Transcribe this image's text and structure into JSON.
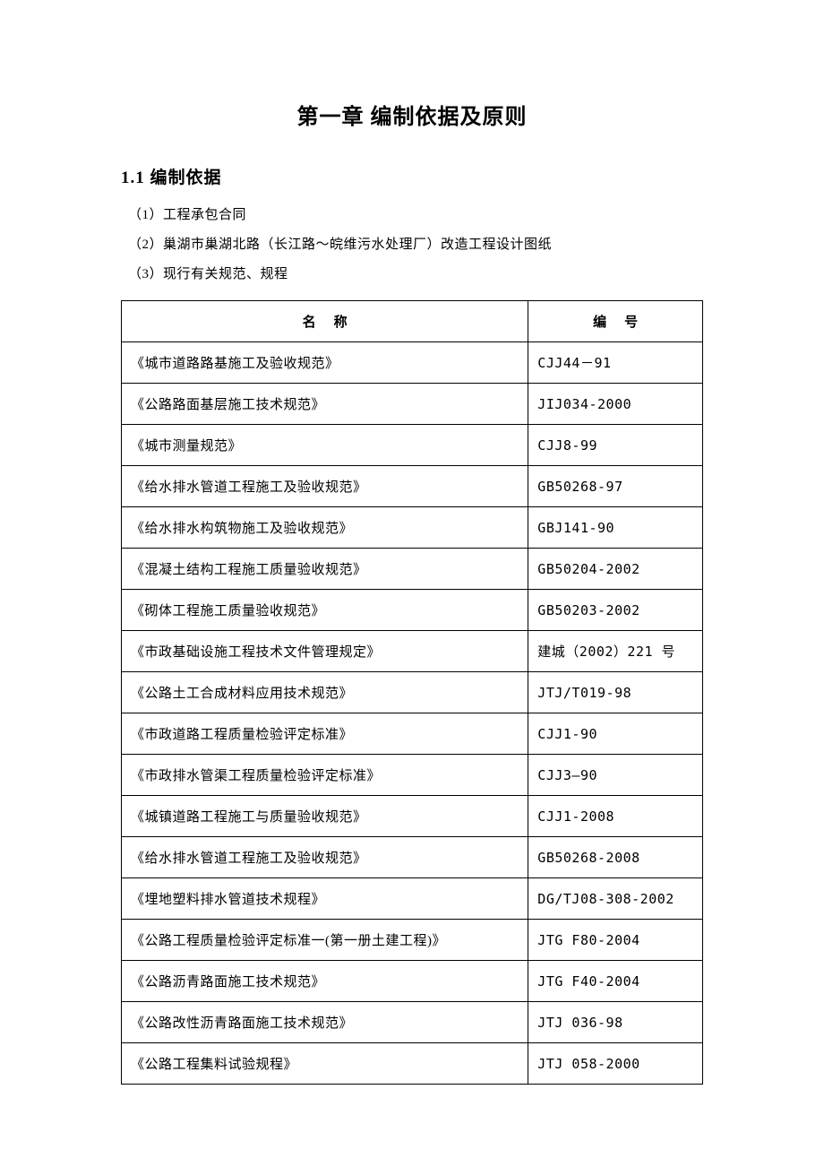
{
  "chapter": {
    "title": "第一章 编制依据及原则"
  },
  "section": {
    "number": "1.1",
    "title": "编制依据"
  },
  "items": {
    "item1": "（1）工程承包合同",
    "item2": "（2）巢湖市巢湖北路（长江路～皖维污水处理厂）改造工程设计图纸",
    "item3": "（3）现行有关规范、规程"
  },
  "table": {
    "headers": {
      "name": "名称",
      "code": "编号"
    },
    "rows": [
      {
        "name": "《城市道路路基施工及验收规范》",
        "code": "CJJ44－91"
      },
      {
        "name": "《公路路面基层施工技术规范》",
        "code": "JIJ034-2000"
      },
      {
        "name": "《城市测量规范》",
        "code": "CJJ8-99"
      },
      {
        "name": "《给水排水管道工程施工及验收规范》",
        "code": "GB50268-97"
      },
      {
        "name": "《给水排水构筑物施工及验收规范》",
        "code": "GBJ141-90"
      },
      {
        "name": "《混凝土结构工程施工质量验收规范》",
        "code": "GB50204-2002"
      },
      {
        "name": "《砌体工程施工质量验收规范》",
        "code": "GB50203-2002"
      },
      {
        "name": "《市政基础设施工程技术文件管理规定》",
        "code": "建城（2002）221 号"
      },
      {
        "name": "《公路土工合成材料应用技术规范》",
        "code": "JTJ/T019-98"
      },
      {
        "name": "《市政道路工程质量检验评定标准》",
        "code": "CJJ1-90"
      },
      {
        "name": "《市政排水管渠工程质量检验评定标准》",
        "code": "CJJ3—90"
      },
      {
        "name": "《城镇道路工程施工与质量验收规范》",
        "code": "CJJ1-2008"
      },
      {
        "name": "《给水排水管道工程施工及验收规范》",
        "code": "GB50268-2008"
      },
      {
        "name": "《埋地塑料排水管道技术规程》",
        "code": "DG/TJ08-308-2002"
      },
      {
        "name": "《公路工程质量检验评定标准一(第一册土建工程)》",
        "code": "JTG F80-2004"
      },
      {
        "name": "《公路沥青路面施工技术规范》",
        "code": "JTG F40-2004"
      },
      {
        "name": "《公路改性沥青路面施工技术规范》",
        "code": "JTJ 036-98"
      },
      {
        "name": "《公路工程集料试验规程》",
        "code": "JTJ 058-2000"
      }
    ]
  },
  "styling": {
    "page_bg": "#ffffff",
    "text_color": "#000000",
    "border_color": "#000000",
    "chapter_title_fontsize": 24,
    "section_title_fontsize": 19,
    "body_fontsize": 15,
    "table_fontsize": 15,
    "line_height": 2.2,
    "font_family": "SimSun"
  }
}
